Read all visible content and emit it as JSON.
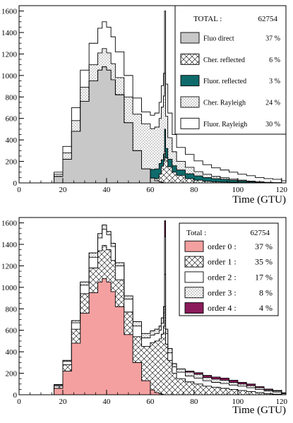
{
  "chart_data": [
    {
      "type": "area",
      "stacked": true,
      "x_unit_label": "Time  (GTU)",
      "xlim": [
        0,
        122
      ],
      "ylim": [
        0,
        1650
      ],
      "xticks": [
        0,
        20,
        40,
        60,
        80,
        100,
        120
      ],
      "yticks": [
        0,
        200,
        400,
        600,
        800,
        1000,
        1200,
        1400,
        1600
      ],
      "legend": {
        "position": "top-right",
        "total_label": "TOTAL :",
        "total_value": "62754",
        "entries": [
          {
            "name": "Fluo direct",
            "percent": "37 %",
            "fill": "#c8c8c8",
            "pattern": "solid"
          },
          {
            "name": "Cher. reflected",
            "percent": "6 %",
            "fill": "#ffffff",
            "pattern": "crosshatch"
          },
          {
            "name": "Fluor. reflected",
            "percent": "3 %",
            "fill": "#0f6b6b",
            "pattern": "solid"
          },
          {
            "name": "Cher. Rayleigh",
            "percent": "24 %",
            "fill": "#ffffff",
            "pattern": "dots"
          },
          {
            "name": "Fluor. Rayleigh",
            "percent": "30 %",
            "fill": "#ffffff",
            "pattern": "none"
          }
        ]
      },
      "x": [
        12,
        16,
        20,
        24,
        28,
        32,
        36,
        38,
        40,
        42,
        44,
        48,
        52,
        56,
        60,
        62,
        64,
        65,
        66,
        66.5,
        67,
        68,
        70,
        72,
        76,
        80,
        84,
        88,
        92,
        96,
        100,
        104,
        108,
        112,
        116,
        120
      ],
      "series": [
        {
          "name": "Fluo direct",
          "values": [
            0,
            60,
            220,
            480,
            760,
            950,
            1050,
            1080,
            1050,
            960,
            820,
            560,
            300,
            130,
            45,
            20,
            10,
            5,
            0,
            0,
            0,
            0,
            0,
            0,
            0,
            0,
            0,
            0,
            0,
            0,
            0,
            0,
            0,
            0,
            0,
            0
          ]
        },
        {
          "name": "Cher. reflected",
          "values": [
            0,
            0,
            0,
            0,
            0,
            0,
            0,
            0,
            0,
            0,
            0,
            0,
            0,
            0,
            0,
            20,
            70,
            150,
            200,
            300,
            230,
            150,
            100,
            70,
            40,
            25,
            15,
            10,
            8,
            5,
            3,
            2,
            1,
            0,
            0,
            0
          ]
        },
        {
          "name": "Fluor. reflected",
          "values": [
            0,
            0,
            0,
            0,
            0,
            0,
            0,
            0,
            0,
            0,
            0,
            0,
            0,
            0,
            80,
            90,
            100,
            60,
            70,
            200,
            90,
            70,
            60,
            50,
            45,
            40,
            35,
            30,
            25,
            20,
            15,
            10,
            5,
            3,
            2,
            0
          ]
        },
        {
          "name": "Cher. Rayleigh",
          "values": [
            0,
            20,
            60,
            100,
            130,
            150,
            160,
            170,
            160,
            150,
            160,
            240,
            340,
            420,
            380,
            390,
            420,
            490,
            540,
            520,
            300,
            200,
            130,
            80,
            60,
            40,
            30,
            20,
            15,
            10,
            8,
            5,
            4,
            2,
            1,
            0
          ]
        },
        {
          "name": "Fluor. Rayleigh",
          "values": [
            0,
            20,
            60,
            120,
            160,
            200,
            230,
            250,
            240,
            250,
            240,
            200,
            150,
            110,
            125,
            130,
            150,
            200,
            210,
            580,
            300,
            230,
            160,
            130,
            120,
            100,
            90,
            80,
            72,
            65,
            55,
            50,
            40,
            35,
            30,
            20
          ]
        }
      ]
    },
    {
      "type": "area",
      "stacked": true,
      "x_unit_label": "Time  (GTU)",
      "xlim": [
        0,
        122
      ],
      "ylim": [
        0,
        1650
      ],
      "xticks": [
        0,
        20,
        40,
        60,
        80,
        100,
        120
      ],
      "yticks": [
        0,
        200,
        400,
        600,
        800,
        1000,
        1200,
        1400,
        1600
      ],
      "legend": {
        "position": "top-right",
        "total_label": "Total :",
        "total_value": "62754",
        "entries": [
          {
            "name": "order 0 :",
            "percent": "37 %",
            "fill": "#f4a0a0",
            "pattern": "solid"
          },
          {
            "name": "order 1 :",
            "percent": "35 %",
            "fill": "#ffffff",
            "pattern": "crosshatch"
          },
          {
            "name": "order 2 :",
            "percent": "17 %",
            "fill": "#ffffff",
            "pattern": "none"
          },
          {
            "name": "order 3 :",
            "percent": "8 %",
            "fill": "#ffffff",
            "pattern": "dots"
          },
          {
            "name": "order 4 :",
            "percent": "4 %",
            "fill": "#8b1a5a",
            "pattern": "solid"
          }
        ]
      },
      "x": [
        12,
        16,
        20,
        24,
        28,
        32,
        36,
        38,
        40,
        42,
        44,
        48,
        52,
        56,
        60,
        62,
        64,
        65,
        66,
        66.5,
        67,
        68,
        70,
        72,
        76,
        80,
        84,
        88,
        92,
        96,
        100,
        104,
        108,
        112,
        116,
        120
      ],
      "series": [
        {
          "name": "order 0 :",
          "values": [
            0,
            60,
            220,
            480,
            760,
            950,
            1050,
            1080,
            1050,
            960,
            820,
            560,
            300,
            130,
            45,
            20,
            10,
            5,
            0,
            0,
            0,
            0,
            0,
            0,
            0,
            0,
            0,
            0,
            0,
            0,
            0,
            0,
            0,
            0,
            0,
            0
          ]
        },
        {
          "name": "order 1 :",
          "values": [
            0,
            20,
            60,
            130,
            180,
            230,
            290,
            310,
            300,
            290,
            250,
            210,
            240,
            320,
            440,
            480,
            510,
            560,
            640,
            820,
            470,
            320,
            200,
            150,
            120,
            100,
            80,
            70,
            60,
            50,
            40,
            30,
            20,
            10,
            5,
            0
          ]
        },
        {
          "name": "order 2 :",
          "values": [
            0,
            10,
            30,
            60,
            80,
            100,
            120,
            150,
            140,
            130,
            130,
            120,
            100,
            80,
            70,
            70,
            80,
            100,
            120,
            300,
            100,
            70,
            60,
            60,
            55,
            55,
            50,
            45,
            45,
            40,
            40,
            35,
            30,
            25,
            20,
            10
          ]
        },
        {
          "name": "order 3 :",
          "values": [
            0,
            5,
            10,
            20,
            30,
            40,
            40,
            40,
            30,
            30,
            30,
            30,
            40,
            40,
            40,
            40,
            40,
            50,
            60,
            350,
            40,
            40,
            30,
            30,
            35,
            35,
            30,
            30,
            30,
            25,
            20,
            20,
            15,
            10,
            10,
            5
          ]
        },
        {
          "name": "order 4 :",
          "values": [
            0,
            0,
            0,
            0,
            0,
            0,
            0,
            0,
            0,
            0,
            0,
            0,
            0,
            0,
            0,
            0,
            0,
            0,
            0,
            150,
            0,
            0,
            0,
            0,
            10,
            15,
            20,
            20,
            20,
            20,
            15,
            15,
            10,
            8,
            5,
            3
          ]
        }
      ]
    }
  ]
}
